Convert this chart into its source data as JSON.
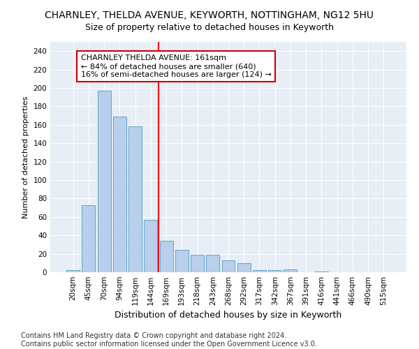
{
  "title": "CHARNLEY, THELDA AVENUE, KEYWORTH, NOTTINGHAM, NG12 5HU",
  "subtitle": "Size of property relative to detached houses in Keyworth",
  "xlabel": "Distribution of detached houses by size in Keyworth",
  "ylabel": "Number of detached properties",
  "categories": [
    "20sqm",
    "45sqm",
    "70sqm",
    "94sqm",
    "119sqm",
    "144sqm",
    "169sqm",
    "193sqm",
    "218sqm",
    "243sqm",
    "268sqm",
    "292sqm",
    "317sqm",
    "342sqm",
    "367sqm",
    "391sqm",
    "416sqm",
    "441sqm",
    "466sqm",
    "490sqm",
    "515sqm"
  ],
  "values": [
    2,
    73,
    197,
    169,
    158,
    57,
    34,
    24,
    19,
    19,
    13,
    10,
    2,
    2,
    3,
    0,
    1,
    0,
    0,
    0,
    0
  ],
  "bar_color": "#b8d0eb",
  "bar_edge_color": "#6aabd2",
  "vline_x": 6.0,
  "vline_color": "#ff0000",
  "annotation_text": "CHARNLEY THELDA AVENUE: 161sqm\n← 84% of detached houses are smaller (640)\n16% of semi-detached houses are larger (124) →",
  "annotation_box_color": "white",
  "annotation_box_edge_color": "#cc0000",
  "ylim": [
    0,
    250
  ],
  "yticks": [
    0,
    20,
    40,
    60,
    80,
    100,
    120,
    140,
    160,
    180,
    200,
    220,
    240
  ],
  "footnote": "Contains HM Land Registry data © Crown copyright and database right 2024.\nContains public sector information licensed under the Open Government Licence v3.0.",
  "background_color": "#e8eef5",
  "grid_color": "#ffffff",
  "title_fontsize": 10,
  "subtitle_fontsize": 9,
  "xlabel_fontsize": 9,
  "ylabel_fontsize": 8,
  "annotation_fontsize": 8,
  "tick_fontsize": 7.5,
  "footnote_fontsize": 7
}
